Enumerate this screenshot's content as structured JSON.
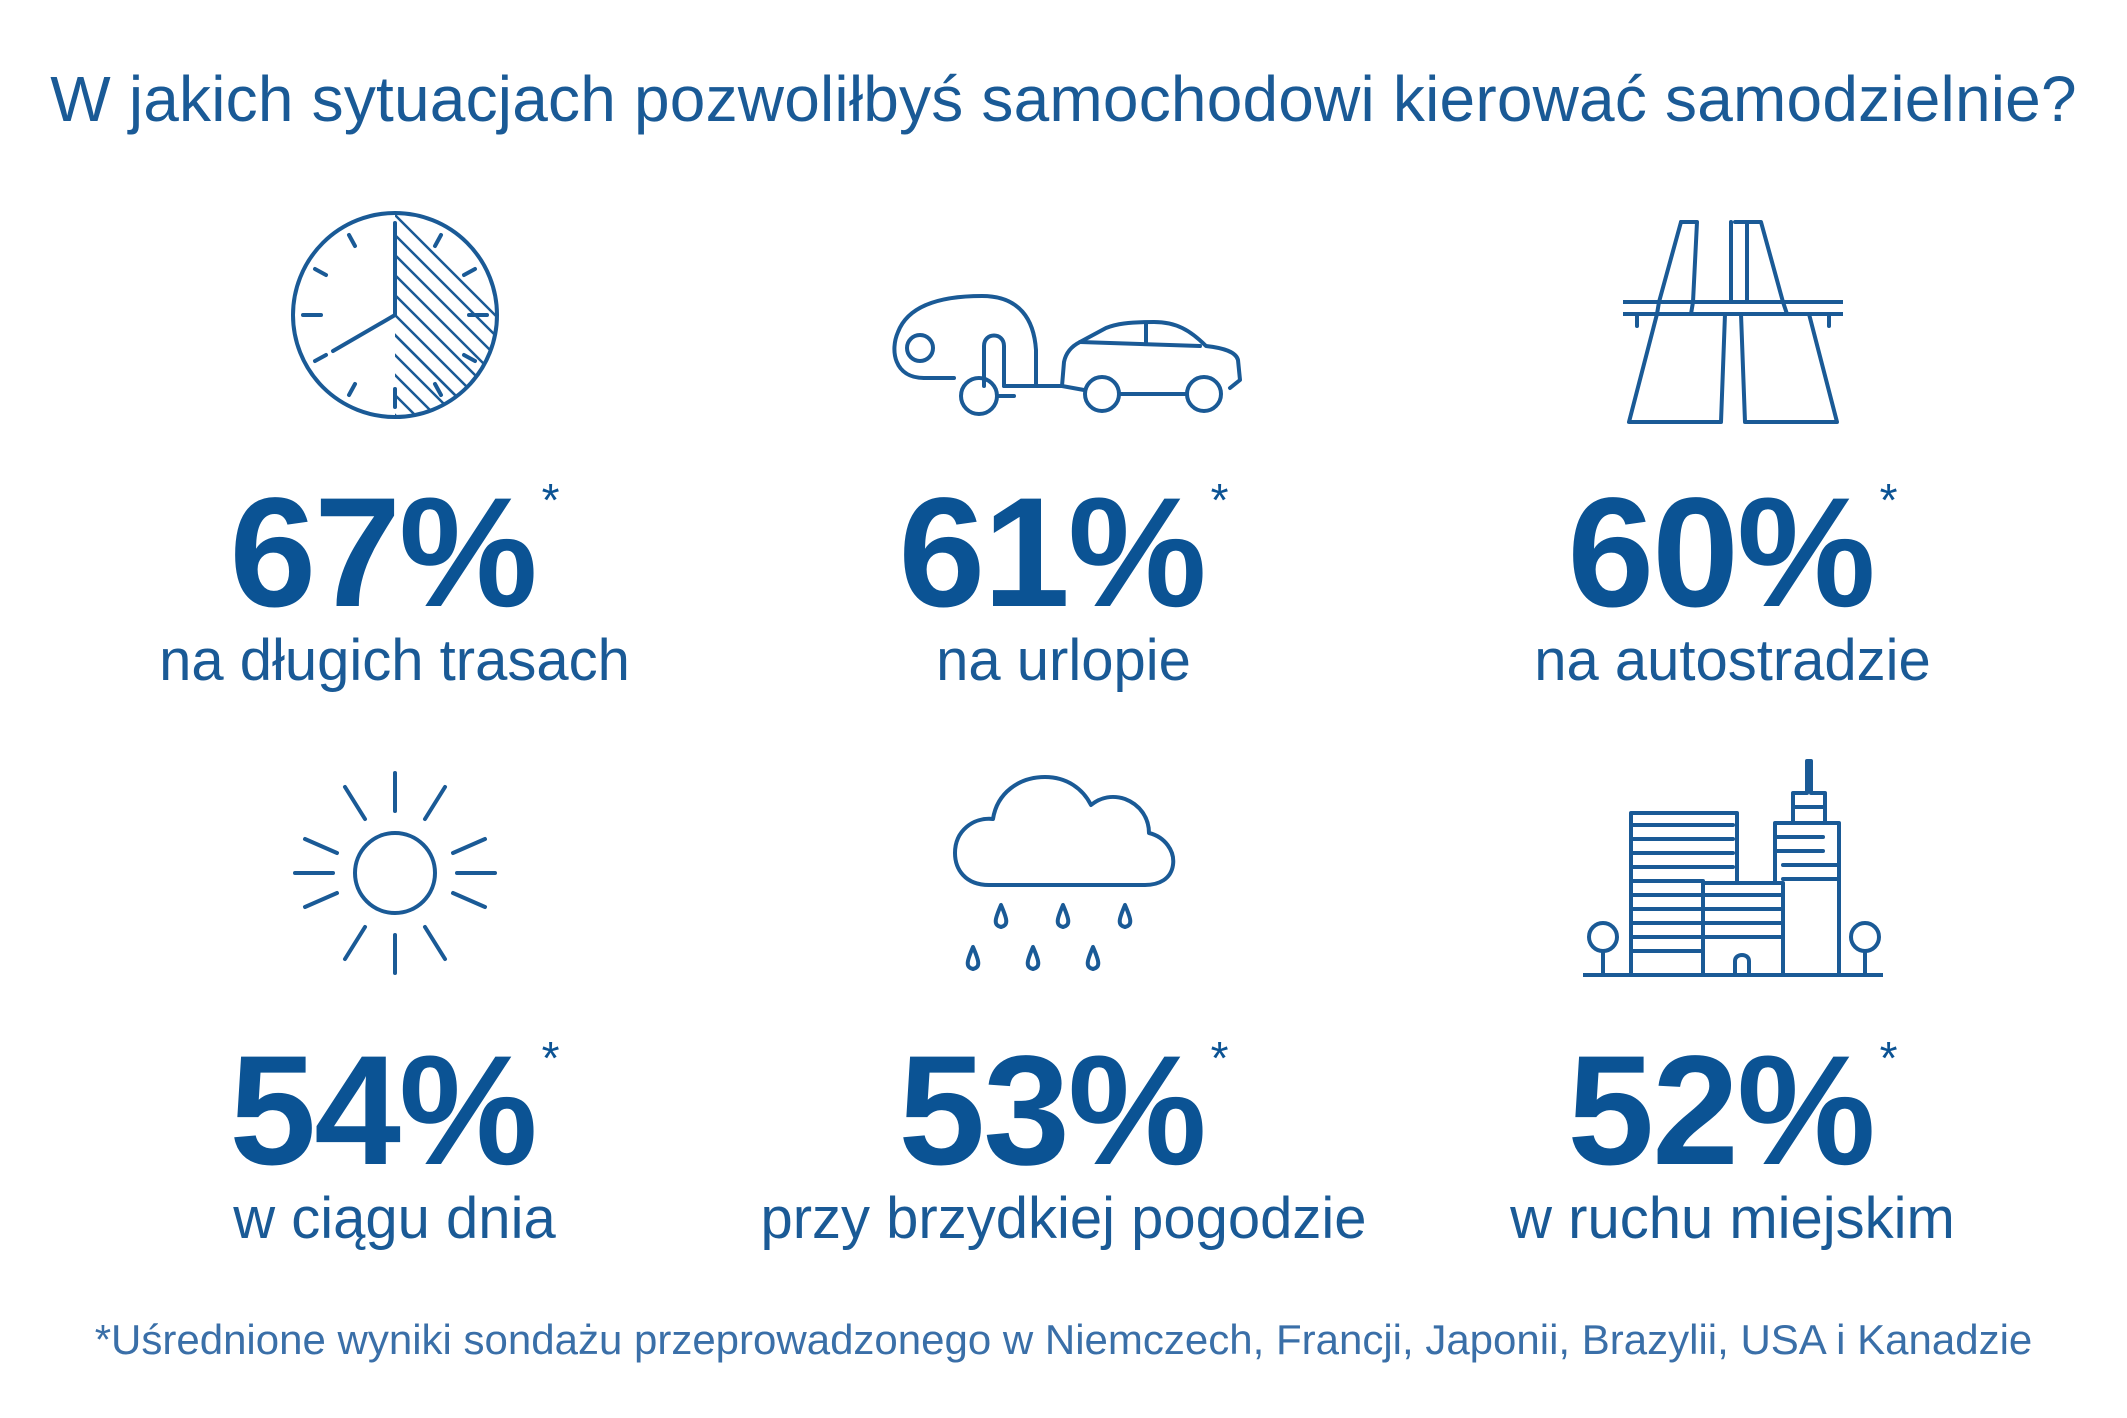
{
  "title": "W jakich sytuacjach pozwoliłbyś samochodowi kierować samodzielnie?",
  "asterisk": "*",
  "stats": [
    {
      "value": "67%",
      "label": "na długich trasach",
      "icon": "clock-icon"
    },
    {
      "value": "61%",
      "label": "na urlopie",
      "icon": "car-caravan-icon"
    },
    {
      "value": "60%",
      "label": "na autostradzie",
      "icon": "highway-icon"
    },
    {
      "value": "54%",
      "label": "w ciągu dnia",
      "icon": "sun-icon"
    },
    {
      "value": "53%",
      "label": "przy brzydkiej pogodzie",
      "icon": "rain-cloud-icon"
    },
    {
      "value": "52%",
      "label": "w ruchu miejskim",
      "icon": "city-icon"
    }
  ],
  "footnote": "*Uśrednione wyniki sondażu przeprowadzonego w Niemczech, Francji, Japonii, Brazylii, USA i Kanadzie",
  "colors": {
    "accent": "#0b5394",
    "text": "#1a5a96"
  }
}
